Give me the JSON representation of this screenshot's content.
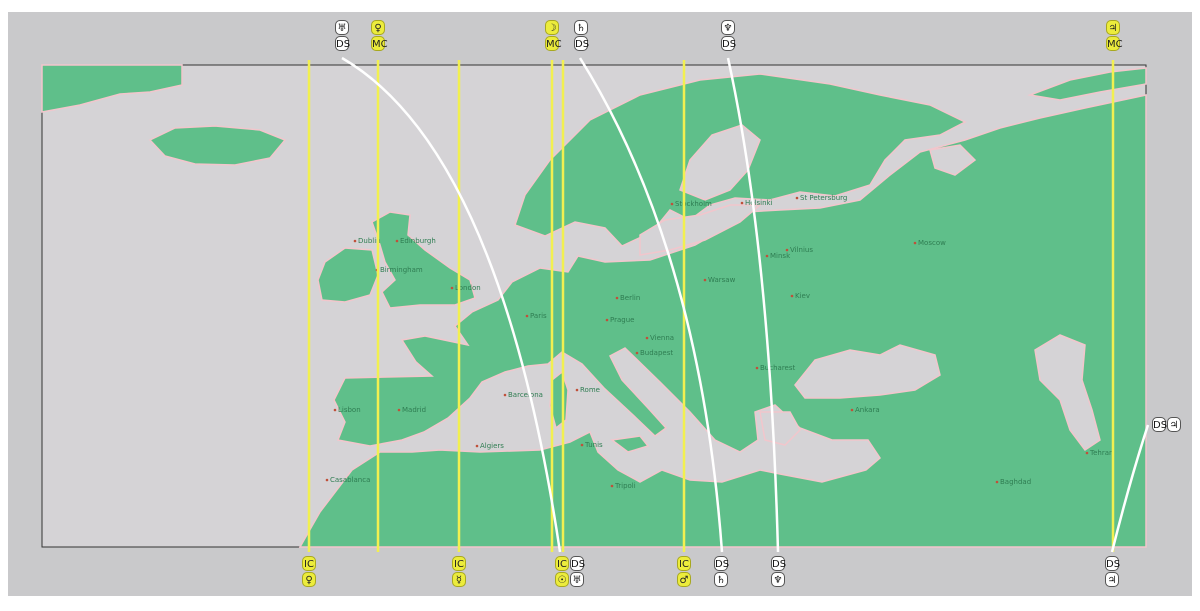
{
  "map": {
    "colors": {
      "land": "#5fbf8a",
      "sea": "#d5d3d6",
      "coast": "#f2c6cc",
      "background": "#c9c9cb",
      "mc_ic_line": "#f2f050",
      "asc_desc_line": "#ffffff"
    },
    "cities": [
      {
        "name": "Dublin"
      },
      {
        "name": "Edinburgh"
      },
      {
        "name": "Birmingham"
      },
      {
        "name": "London"
      },
      {
        "name": "Paris"
      },
      {
        "name": "Madrid"
      },
      {
        "name": "Lisbon"
      },
      {
        "name": "Barcelona"
      },
      {
        "name": "Algiers"
      },
      {
        "name": "Tunis"
      },
      {
        "name": "Tripoli"
      },
      {
        "name": "Casablanca"
      },
      {
        "name": "Rome"
      },
      {
        "name": "Berlin"
      },
      {
        "name": "Prague"
      },
      {
        "name": "Vienna"
      },
      {
        "name": "Budapest"
      },
      {
        "name": "Warsaw"
      },
      {
        "name": "Stockholm"
      },
      {
        "name": "Helsinki"
      },
      {
        "name": "St Petersburg"
      },
      {
        "name": "Moscow"
      },
      {
        "name": "Minsk"
      },
      {
        "name": "Vilnius"
      },
      {
        "name": "Kiev"
      },
      {
        "name": "Ankara"
      },
      {
        "name": "Baghdad"
      },
      {
        "name": "Tehran"
      },
      {
        "name": "Bucharest"
      }
    ],
    "top_markers": [
      {
        "symbols": [
          "♅",
          "DS"
        ],
        "type": "curve"
      },
      {
        "symbols": [
          "♀",
          "MC"
        ],
        "type": "line"
      },
      {
        "symbols": [
          "☽",
          "MC"
        ],
        "type": "line"
      },
      {
        "symbols": [
          "♄",
          "DS"
        ],
        "type": "curve"
      },
      {
        "symbols": [
          "♆",
          "DS"
        ],
        "type": "curve"
      },
      {
        "symbols": [
          "♃",
          "MC"
        ],
        "type": "line"
      }
    ],
    "bottom_markers": [
      {
        "symbols": [
          "IC",
          "♀"
        ],
        "type": "line"
      },
      {
        "symbols": [
          "IC",
          "☿"
        ],
        "type": "line"
      },
      {
        "symbols": [
          "IC",
          "☉"
        ],
        "type": "line"
      },
      {
        "symbols": [
          "DS",
          "♅"
        ],
        "type": "curve"
      },
      {
        "symbols": [
          "IC",
          "♂"
        ],
        "type": "line"
      },
      {
        "symbols": [
          "DS",
          "♄"
        ],
        "type": "curve"
      },
      {
        "symbols": [
          "DS",
          "♆"
        ],
        "type": "curve"
      },
      {
        "symbols": [
          "DS",
          "♃"
        ],
        "type": "curve"
      }
    ],
    "right_marker": {
      "symbols": [
        "DS",
        "♃"
      ],
      "type": "curve"
    }
  }
}
